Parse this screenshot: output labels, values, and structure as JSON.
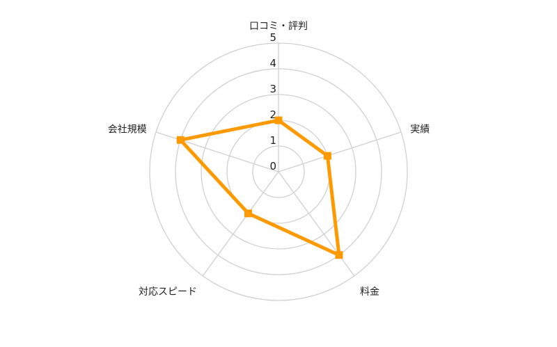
{
  "chart_data": {
    "type": "radar",
    "categories": [
      "口コミ・評判",
      "実績",
      "料金",
      "対応スピード",
      "会社規模"
    ],
    "values": [
      2,
      2,
      4,
      2,
      4
    ],
    "rlim": [
      0,
      5
    ],
    "tick_labels": [
      "0",
      "1",
      "2",
      "3",
      "4",
      "5"
    ],
    "grid": true,
    "legend": "none",
    "colors": {
      "series": "#FF9900",
      "grid": "#D0D0D0"
    }
  }
}
